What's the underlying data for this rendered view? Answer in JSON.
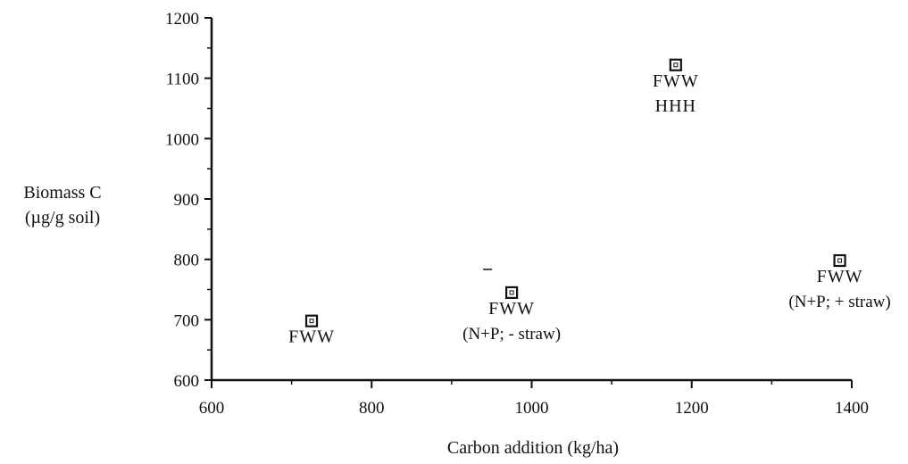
{
  "chart_data": {
    "type": "scatter",
    "title": "",
    "xlabel": "Carbon addition (kg/ha)",
    "ylabel": [
      "Biomass C",
      "(µg/g soil)"
    ],
    "xlim": [
      600,
      1400
    ],
    "ylim": [
      600,
      1200
    ],
    "x_ticks": [
      600,
      800,
      1000,
      1200,
      1400
    ],
    "y_ticks": [
      600,
      700,
      800,
      900,
      1000,
      1100,
      1200
    ],
    "x_tick_labels": [
      "600",
      "800",
      "1000",
      "1200",
      "1400"
    ],
    "y_tick_labels": [
      "600",
      "700",
      "800",
      "900",
      "1000",
      "1100",
      "1200"
    ],
    "grid": false,
    "marker": "square",
    "points": [
      {
        "x": 725,
        "y": 698,
        "label": "FWW",
        "note": ""
      },
      {
        "x": 975,
        "y": 745,
        "label": "FWW",
        "note": "(N+P; - straw)"
      },
      {
        "x": 1180,
        "y": 1122,
        "label": "FWW",
        "note": "HHH"
      },
      {
        "x": 1385,
        "y": 798,
        "label": "FWW",
        "note": "(N+P; + straw)"
      }
    ]
  }
}
